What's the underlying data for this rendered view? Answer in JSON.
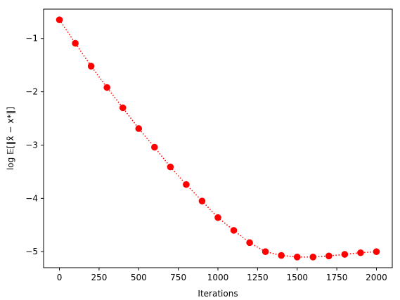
{
  "chart_data": {
    "type": "line",
    "title": "",
    "xlabel": "Iterations",
    "ylabel": "log 𝔼[‖x̃ − x*‖]",
    "xlim": [
      -100,
      2100
    ],
    "ylim": [
      -5.3,
      -0.45
    ],
    "x_ticks": [
      0,
      250,
      500,
      750,
      1000,
      1250,
      1500,
      1750,
      2000
    ],
    "x_tick_labels": [
      "0",
      "250",
      "500",
      "750",
      "1000",
      "1250",
      "1500",
      "1750",
      "2000"
    ],
    "y_ticks": [
      -1,
      -2,
      -3,
      -4,
      -5
    ],
    "y_tick_labels": [
      "−1",
      "−2",
      "−3",
      "−4",
      "−5"
    ],
    "grid": false,
    "series": [
      {
        "color": "#ff0000",
        "line_style": "dotted",
        "marker": "circle",
        "x": [
          0,
          100,
          200,
          300,
          400,
          500,
          600,
          700,
          800,
          900,
          1000,
          1100,
          1200,
          1300,
          1400,
          1500,
          1600,
          1700,
          1800,
          1900,
          2000
        ],
        "y": [
          -0.65,
          -1.09,
          -1.52,
          -1.92,
          -2.3,
          -2.69,
          -3.04,
          -3.41,
          -3.74,
          -4.05,
          -4.36,
          -4.6,
          -4.83,
          -5.0,
          -5.07,
          -5.1,
          -5.1,
          -5.08,
          -5.05,
          -5.02,
          -5.0
        ]
      }
    ]
  }
}
